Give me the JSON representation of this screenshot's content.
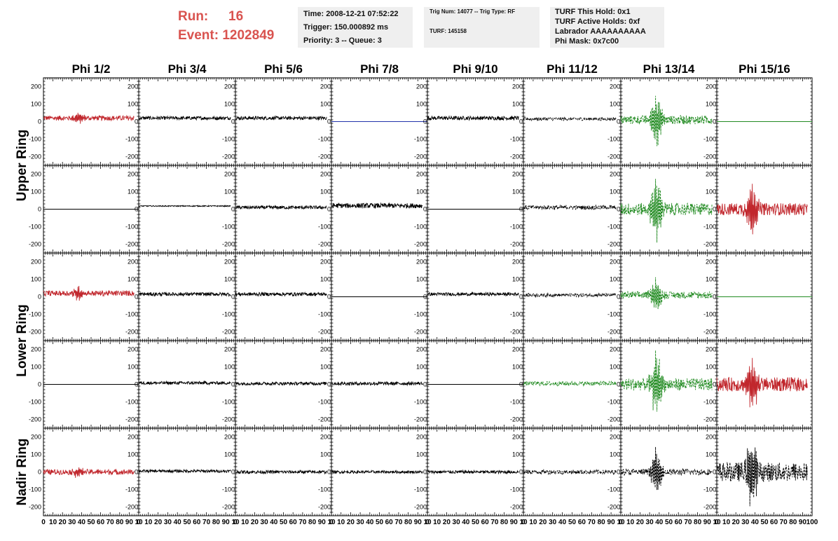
{
  "header": {
    "run_label": "Run:",
    "run_value": "16",
    "event_label": "Event:",
    "event_value": "1202849",
    "time": "Time: 2008-12-21 07:52:22",
    "trigger": "Trigger: 150.000892 ms",
    "priority": "Priority: 3 -- Queue: 3",
    "trig_num": "Trig Num: 14077 -- Trig Type: RF",
    "turf": "TURF: 145158",
    "turf_hold": "TURF This Hold: 0x1",
    "turf_active": "TURF Active Holds: 0xf",
    "labrador": "Labrador AAAAAAAAAA",
    "phi_mask": "Phi Mask: 0x7c00"
  },
  "chart_data": {
    "type": "line",
    "columns": [
      "Phi 1/2",
      "Phi 3/4",
      "Phi 5/6",
      "Phi 7/8",
      "Phi 9/10",
      "Phi 11/12",
      "Phi 13/14",
      "Phi 15/16"
    ],
    "row_groups": [
      {
        "label": "Upper Ring",
        "rows": [
          0,
          1
        ]
      },
      {
        "label": "Lower Ring",
        "rows": [
          2,
          3
        ]
      },
      {
        "label": "Nadir Ring",
        "rows": [
          4
        ]
      }
    ],
    "ylim": [
      -250,
      250
    ],
    "yticks": [
      -200,
      -100,
      0,
      100,
      200
    ],
    "xlim": [
      0,
      100
    ],
    "xtick_labels_last": [
      "0",
      "10",
      "20",
      "30",
      "40",
      "50",
      "60",
      "70",
      "80",
      "90",
      "100"
    ],
    "xtick_labels": [
      "0",
      "10",
      "20",
      "30",
      "40",
      "50",
      "60",
      "70",
      "80",
      "90",
      "10"
    ],
    "colors": {
      "red": "#c1272d",
      "black": "#000000",
      "blue": "#2233aa",
      "green": "#228b22",
      "hline": "#000000"
    },
    "traces": [
      [
        {
          "color": "red",
          "style": "solid",
          "amp": 14,
          "burst": 30,
          "x_end": 95,
          "offset": 20
        },
        {
          "color": "black",
          "style": "solid",
          "amp": 10,
          "burst": 0,
          "x_end": 95,
          "offset": 20
        },
        {
          "color": "black",
          "style": "solid",
          "amp": 10,
          "burst": 0,
          "x_end": 95,
          "offset": 20
        },
        {
          "color": "blue",
          "style": "flat",
          "amp": 0,
          "burst": 0,
          "x_end": 100,
          "offset": 0
        },
        {
          "color": "black",
          "style": "solid",
          "amp": 11,
          "burst": 0,
          "x_end": 95,
          "offset": 20
        },
        {
          "color": "black",
          "style": "dashed",
          "amp": 9,
          "burst": 0,
          "x_end": 95,
          "offset": 15
        },
        {
          "color": "green",
          "style": "dashed",
          "amp": 25,
          "burst": 170,
          "x_end": 95,
          "offset": 10
        },
        {
          "color": "green",
          "style": "flat",
          "amp": 0,
          "burst": 0,
          "x_end": 100,
          "offset": 0
        }
      ],
      [
        {
          "color": "hline",
          "style": "flat",
          "amp": 0,
          "burst": 0,
          "x_end": 100,
          "offset": 0
        },
        {
          "color": "black",
          "style": "solid",
          "amp": 3,
          "burst": 0,
          "x_end": 95,
          "offset": 18
        },
        {
          "color": "black",
          "style": "solid",
          "amp": 10,
          "burst": 0,
          "x_end": 95,
          "offset": 10
        },
        {
          "color": "black",
          "style": "solid",
          "amp": 14,
          "burst": 0,
          "x_end": 95,
          "offset": 20
        },
        {
          "color": "hline",
          "style": "flat",
          "amp": 0,
          "burst": 0,
          "x_end": 100,
          "offset": 0
        },
        {
          "color": "black",
          "style": "dashed",
          "amp": 12,
          "burst": 0,
          "x_end": 95,
          "offset": 10
        },
        {
          "color": "green",
          "style": "dashed",
          "amp": 35,
          "burst": 200,
          "x_end": 95,
          "offset": 0
        },
        {
          "color": "red",
          "style": "solid",
          "amp": 35,
          "burst": 190,
          "x_end": 95,
          "offset": 0
        }
      ],
      [
        {
          "color": "red",
          "style": "solid",
          "amp": 15,
          "burst": 40,
          "x_end": 95,
          "offset": 20
        },
        {
          "color": "black",
          "style": "solid",
          "amp": 10,
          "burst": 0,
          "x_end": 95,
          "offset": 15
        },
        {
          "color": "black",
          "style": "solid",
          "amp": 10,
          "burst": 0,
          "x_end": 95,
          "offset": 15
        },
        {
          "color": "hline",
          "style": "flat",
          "amp": 0,
          "burst": 0,
          "x_end": 100,
          "offset": 0
        },
        {
          "color": "black",
          "style": "solid",
          "amp": 9,
          "burst": 0,
          "x_end": 95,
          "offset": 15
        },
        {
          "color": "black",
          "style": "dashed",
          "amp": 10,
          "burst": 0,
          "x_end": 95,
          "offset": 10
        },
        {
          "color": "green",
          "style": "dashed",
          "amp": 20,
          "burst": 110,
          "x_end": 95,
          "offset": 10
        },
        {
          "color": "green",
          "style": "flat",
          "amp": 0,
          "burst": 0,
          "x_end": 100,
          "offset": 0
        }
      ],
      [
        {
          "color": "hline",
          "style": "flat",
          "amp": 0,
          "burst": 0,
          "x_end": 100,
          "offset": 0
        },
        {
          "color": "black",
          "style": "solid",
          "amp": 9,
          "burst": 0,
          "x_end": 95,
          "offset": 8
        },
        {
          "color": "black",
          "style": "solid",
          "amp": 9,
          "burst": 0,
          "x_end": 95,
          "offset": 5
        },
        {
          "color": "black",
          "style": "solid",
          "amp": 10,
          "burst": 0,
          "x_end": 95,
          "offset": 5
        },
        {
          "color": "hline",
          "style": "flat",
          "amp": 0,
          "burst": 0,
          "x_end": 100,
          "offset": 0
        },
        {
          "color": "green",
          "style": "dashed",
          "amp": 12,
          "burst": 0,
          "x_end": 95,
          "offset": 5
        },
        {
          "color": "green",
          "style": "dashed",
          "amp": 35,
          "burst": 200,
          "x_end": 95,
          "offset": 0
        },
        {
          "color": "red",
          "style": "solid",
          "amp": 40,
          "burst": 160,
          "x_end": 95,
          "offset": 0
        }
      ],
      [
        {
          "color": "red",
          "style": "solid",
          "amp": 15,
          "burst": 35,
          "x_end": 95,
          "offset": 0
        },
        {
          "color": "black",
          "style": "solid",
          "amp": 8,
          "burst": 0,
          "x_end": 95,
          "offset": 5
        },
        {
          "color": "black",
          "style": "solid",
          "amp": 9,
          "burst": 0,
          "x_end": 95,
          "offset": 0
        },
        {
          "color": "black",
          "style": "solid",
          "amp": 8,
          "burst": 0,
          "x_end": 95,
          "offset": 0
        },
        {
          "color": "black",
          "style": "solid",
          "amp": 9,
          "burst": 0,
          "x_end": 95,
          "offset": 0
        },
        {
          "color": "black",
          "style": "dashed",
          "amp": 12,
          "burst": 0,
          "x_end": 95,
          "offset": 0
        },
        {
          "color": "black",
          "style": "dashed",
          "amp": 18,
          "burst": 140,
          "x_end": 95,
          "offset": 0
        },
        {
          "color": "black",
          "style": "dashed",
          "amp": 55,
          "burst": 200,
          "x_end": 95,
          "offset": 0
        }
      ]
    ]
  }
}
